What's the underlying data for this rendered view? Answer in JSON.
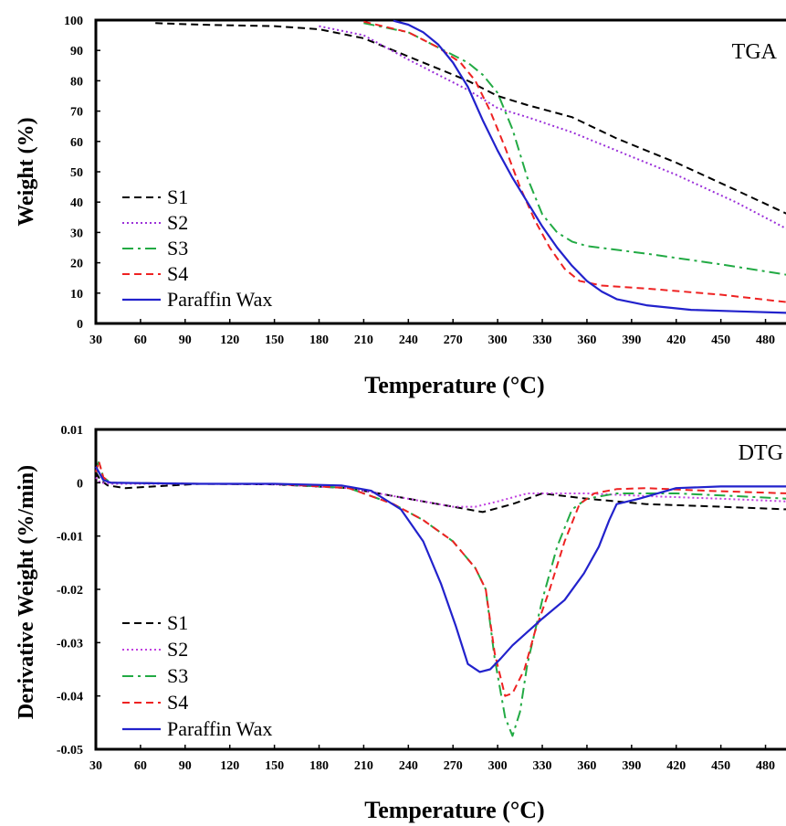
{
  "chart_data": [
    {
      "type": "line",
      "panel_label": "TGA",
      "xlabel": "Temperature (°C)",
      "ylabel": "Weight (%)",
      "xlim": [
        30,
        495
      ],
      "ylim": [
        0,
        100
      ],
      "xticks": [
        30,
        60,
        90,
        120,
        150,
        180,
        210,
        240,
        270,
        300,
        330,
        360,
        390,
        420,
        450,
        480
      ],
      "yticks": [
        0,
        10,
        20,
        30,
        40,
        50,
        60,
        70,
        80,
        90,
        100
      ],
      "tick_labels_x": [
        "30",
        "60",
        "90",
        "120",
        "150",
        "180",
        "210",
        "240",
        "270",
        "300",
        "330",
        "360",
        "390",
        "420",
        "450",
        "480"
      ],
      "tick_labels_y": [
        "0",
        "10",
        "20",
        "30",
        "40",
        "50",
        "60",
        "70",
        "80",
        "90",
        "100"
      ],
      "legend_position": "bottom-left",
      "grid": false,
      "series": [
        {
          "name": "S1",
          "color": "#000000",
          "dash": "dashed",
          "x": [
            70,
            100,
            150,
            180,
            210,
            240,
            260,
            280,
            300,
            320,
            350,
            380,
            420,
            460,
            495
          ],
          "y": [
            99,
            98.5,
            98,
            97,
            94,
            88,
            84,
            80,
            75,
            72,
            68,
            61,
            53,
            44,
            36
          ]
        },
        {
          "name": "S2",
          "color": "#9b30d9",
          "dash": "dotted",
          "x": [
            180,
            210,
            240,
            260,
            280,
            300,
            320,
            350,
            380,
            420,
            460,
            495
          ],
          "y": [
            98,
            95,
            87,
            82,
            77,
            71,
            68,
            63,
            57,
            49,
            40,
            31
          ]
        },
        {
          "name": "S3",
          "color": "#22aa44",
          "dash": "dashdot",
          "x": [
            210,
            240,
            260,
            280,
            290,
            300,
            310,
            320,
            330,
            340,
            350,
            360,
            400,
            450,
            495
          ],
          "y": [
            99,
            96,
            91,
            86,
            82,
            76,
            64,
            48,
            36,
            30,
            27,
            25.5,
            23,
            19.5,
            16
          ]
        },
        {
          "name": "S4",
          "color": "#ee2222",
          "dash": "dashed",
          "x": [
            210,
            240,
            260,
            275,
            285,
            295,
            305,
            315,
            325,
            335,
            345,
            355,
            370,
            400,
            450,
            495
          ],
          "y": [
            99.5,
            96,
            91,
            86,
            80,
            70,
            58,
            45,
            34,
            25,
            18,
            14,
            12.5,
            11.5,
            9.5,
            7
          ]
        },
        {
          "name": "Paraffin Wax",
          "color": "#2222cc",
          "dash": "solid",
          "x": [
            230,
            240,
            250,
            260,
            270,
            280,
            290,
            300,
            310,
            320,
            330,
            340,
            350,
            360,
            370,
            380,
            400,
            430,
            460,
            495
          ],
          "y": [
            99.8,
            98.5,
            96,
            92,
            86,
            78,
            67,
            57,
            48,
            40,
            32,
            25,
            19,
            14,
            10.5,
            8,
            6,
            4.5,
            4,
            3.5
          ]
        }
      ]
    },
    {
      "type": "line",
      "panel_label": "DTG",
      "xlabel": "Temperature (°C)",
      "ylabel": "Derivative Weight (%/min)",
      "xlim": [
        30,
        495
      ],
      "ylim": [
        -0.05,
        0.01
      ],
      "xticks": [
        30,
        60,
        90,
        120,
        150,
        180,
        210,
        240,
        270,
        300,
        330,
        360,
        390,
        420,
        450,
        480
      ],
      "yticks": [
        -0.05,
        -0.04,
        -0.03,
        -0.02,
        -0.01,
        0,
        0.01
      ],
      "tick_labels_x": [
        "30",
        "60",
        "90",
        "120",
        "150",
        "180",
        "210",
        "240",
        "270",
        "300",
        "330",
        "360",
        "390",
        "420",
        "450",
        "480"
      ],
      "tick_labels_y": [
        "-0.05",
        "-0.04",
        "-0.03",
        "-0.02",
        "-0.01",
        "0",
        "0.01"
      ],
      "legend_position": "bottom-left",
      "grid": false,
      "series": [
        {
          "name": "S1",
          "color": "#000000",
          "dash": "dashed",
          "x": [
            30,
            33,
            38,
            50,
            100,
            150,
            200,
            230,
            260,
            290,
            310,
            330,
            360,
            400,
            450,
            495
          ],
          "y": [
            0.002,
            0.0005,
            -0.0005,
            -0.001,
            -0.0002,
            -0.0003,
            -0.001,
            -0.0025,
            -0.004,
            -0.0055,
            -0.004,
            -0.002,
            -0.003,
            -0.004,
            -0.0045,
            -0.005
          ]
        },
        {
          "name": "S2",
          "color": "#c040e0",
          "dash": "dotted",
          "x": [
            30,
            33,
            40,
            100,
            150,
            200,
            240,
            270,
            285,
            300,
            320,
            360,
            400,
            450,
            495
          ],
          "y": [
            0.001,
            0,
            -0.0002,
            -0.0002,
            -0.0003,
            -0.001,
            -0.003,
            -0.0045,
            -0.0045,
            -0.0035,
            -0.002,
            -0.002,
            -0.0025,
            -0.003,
            -0.0035
          ]
        },
        {
          "name": "S3",
          "color": "#22aa44",
          "dash": "dashdot",
          "x": [
            30,
            32,
            35,
            40,
            100,
            150,
            200,
            230,
            250,
            270,
            285,
            292,
            298,
            305,
            310,
            315,
            320,
            330,
            340,
            350,
            360,
            380,
            420,
            460,
            495
          ],
          "y": [
            0.002,
            0.004,
            0.001,
            0,
            -0.0002,
            -0.0002,
            -0.001,
            -0.004,
            -0.007,
            -0.011,
            -0.016,
            -0.02,
            -0.033,
            -0.044,
            -0.0475,
            -0.043,
            -0.034,
            -0.022,
            -0.012,
            -0.005,
            -0.003,
            -0.002,
            -0.002,
            -0.0025,
            -0.003
          ]
        },
        {
          "name": "S4",
          "color": "#ee2222",
          "dash": "dashed",
          "x": [
            30,
            32,
            35,
            40,
            100,
            150,
            200,
            230,
            250,
            270,
            285,
            292,
            298,
            305,
            310,
            318,
            325,
            335,
            345,
            355,
            365,
            380,
            400,
            440,
            495
          ],
          "y": [
            0.002,
            0.004,
            0.001,
            0,
            -0.0002,
            -0.0002,
            -0.001,
            -0.004,
            -0.007,
            -0.011,
            -0.016,
            -0.02,
            -0.032,
            -0.04,
            -0.0395,
            -0.035,
            -0.028,
            -0.02,
            -0.011,
            -0.004,
            -0.002,
            -0.0012,
            -0.001,
            -0.0015,
            -0.002
          ]
        },
        {
          "name": "Paraffin Wax",
          "color": "#2222cc",
          "dash": "solid",
          "x": [
            30,
            32,
            35,
            40,
            100,
            150,
            195,
            215,
            235,
            250,
            262,
            272,
            280,
            288,
            295,
            302,
            310,
            320,
            330,
            345,
            358,
            368,
            375,
            380,
            395,
            420,
            450,
            495
          ],
          "y": [
            0.003,
            0.002,
            0.0005,
            0,
            -0.0002,
            -0.0002,
            -0.0005,
            -0.0015,
            -0.005,
            -0.011,
            -0.019,
            -0.027,
            -0.034,
            -0.0355,
            -0.035,
            -0.033,
            -0.0305,
            -0.028,
            -0.0255,
            -0.022,
            -0.017,
            -0.012,
            -0.007,
            -0.004,
            -0.003,
            -0.001,
            -0.0007,
            -0.0007
          ]
        }
      ]
    }
  ]
}
